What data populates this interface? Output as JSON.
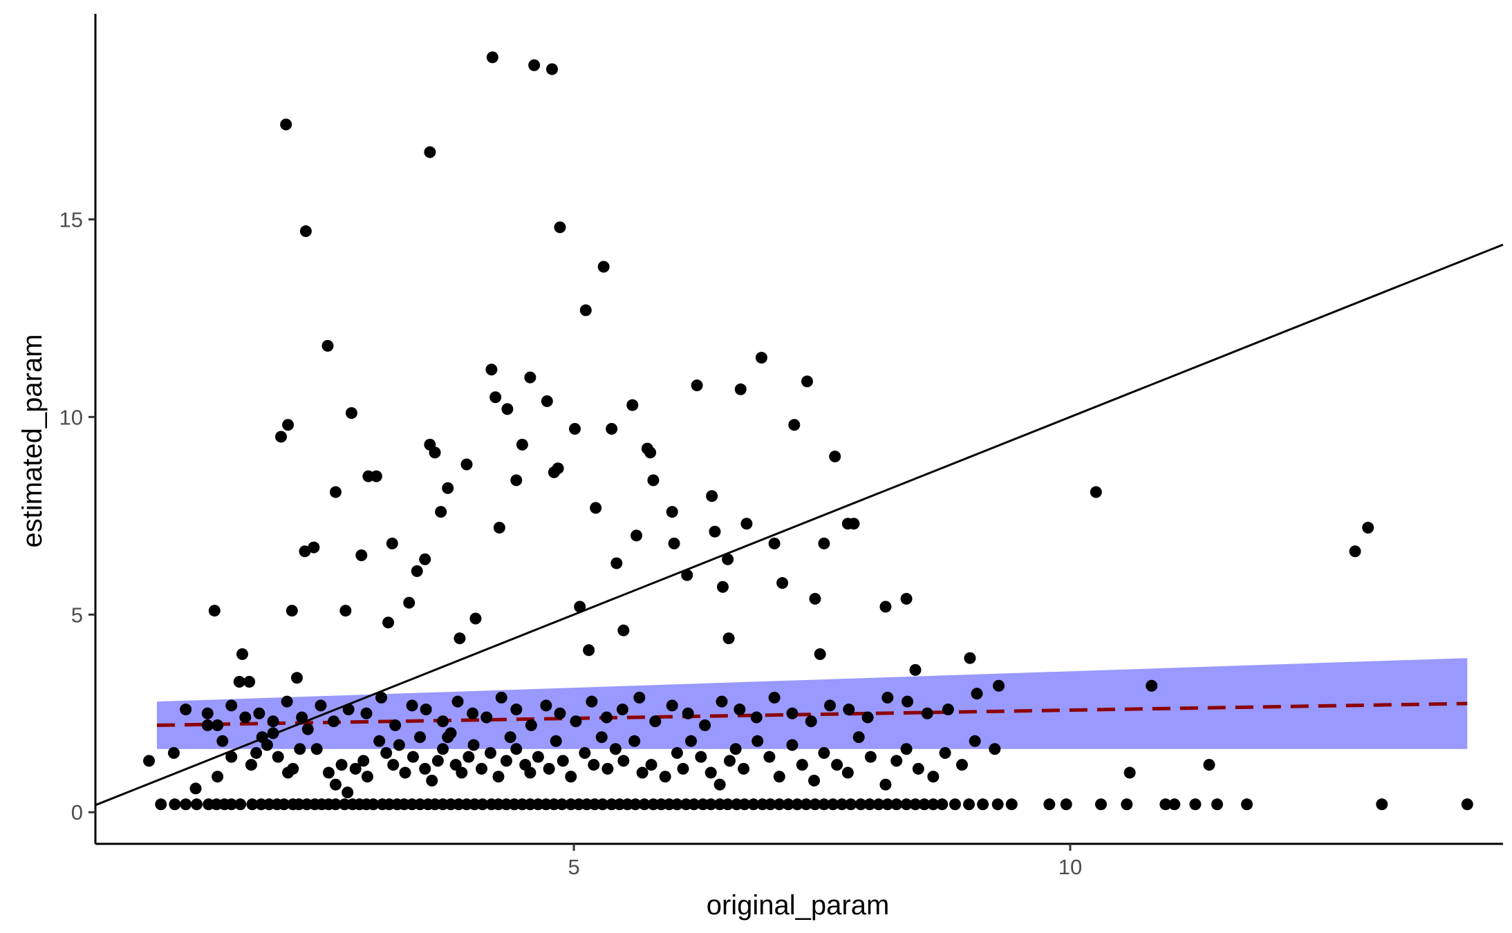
{
  "chart_data": {
    "type": "scatter",
    "title": "",
    "xlabel": "original_param",
    "ylabel": "estimated_param",
    "xlim": [
      0.18,
      14.36
    ],
    "ylim": [
      -0.8,
      20.2
    ],
    "x_ticks": [
      5,
      10
    ],
    "x_tick_labels": [
      "5",
      "10"
    ],
    "y_ticks": [
      0,
      5,
      10,
      15
    ],
    "y_tick_labels": [
      "0",
      "5",
      "10",
      "15"
    ],
    "grid": false,
    "legend": "none",
    "colors": {
      "points": "#000000",
      "identity_line": "#000000",
      "trend_line": "#8b0000",
      "confidence_band": "#9999ff"
    },
    "reference_line": {
      "type": "identity",
      "slope": 1,
      "intercept": 0
    },
    "trend": {
      "method": "linear",
      "x": [
        0.8,
        14.0
      ],
      "y": [
        2.2,
        2.75
      ],
      "ci_lower": [
        1.6,
        1.6
      ],
      "ci_upper": [
        2.8,
        3.9
      ]
    },
    "series": [
      {
        "x": [
          0.84,
          0.98,
          1.09,
          1.2,
          1.32,
          1.4,
          1.48,
          1.55,
          1.64,
          1.76,
          1.85,
          1.93,
          2.01,
          2.08,
          2.17,
          2.23,
          2.31,
          2.39,
          2.46,
          2.53,
          2.6,
          2.69,
          2.77,
          2.84,
          2.91,
          2.98,
          3.07,
          3.14,
          3.22,
          3.29,
          3.37,
          3.45,
          3.53,
          3.6,
          3.68,
          3.76,
          3.84,
          3.92,
          4.0,
          4.08,
          4.17,
          4.24,
          4.32,
          4.4,
          4.48,
          4.56,
          4.64,
          4.72,
          4.8,
          4.88,
          4.97,
          5.05,
          5.13,
          5.21,
          5.29,
          5.38,
          5.46,
          5.54,
          5.62,
          5.71,
          5.8,
          5.88,
          5.96,
          6.04,
          6.13,
          6.21,
          6.3,
          6.38,
          6.47,
          6.55,
          6.64,
          6.72,
          6.81,
          6.9,
          6.98,
          7.07,
          7.16,
          7.25,
          7.34,
          7.43,
          7.52,
          7.61,
          7.7,
          7.79,
          7.89,
          7.98,
          8.07,
          8.16,
          8.25,
          8.35,
          8.44,
          8.53,
          8.62,
          8.71,
          8.84,
          8.98,
          9.12,
          9.27,
          9.41,
          9.79,
          9.96,
          10.31,
          10.57,
          10.96,
          11.05,
          11.26,
          11.48,
          11.78,
          13.14,
          14.0
        ],
        "y": [
          0.2,
          0.2,
          0.2,
          0.2,
          0.2,
          0.2,
          0.2,
          0.2,
          0.2,
          0.2,
          0.2,
          0.2,
          0.2,
          0.2,
          0.2,
          0.2,
          0.2,
          0.2,
          0.2,
          0.2,
          0.2,
          0.2,
          0.2,
          0.2,
          0.2,
          0.2,
          0.2,
          0.2,
          0.2,
          0.2,
          0.2,
          0.2,
          0.2,
          0.2,
          0.2,
          0.2,
          0.2,
          0.2,
          0.2,
          0.2,
          0.2,
          0.2,
          0.2,
          0.2,
          0.2,
          0.2,
          0.2,
          0.2,
          0.2,
          0.2,
          0.2,
          0.2,
          0.2,
          0.2,
          0.2,
          0.2,
          0.2,
          0.2,
          0.2,
          0.2,
          0.2,
          0.2,
          0.2,
          0.2,
          0.2,
          0.2,
          0.2,
          0.2,
          0.2,
          0.2,
          0.2,
          0.2,
          0.2,
          0.2,
          0.2,
          0.2,
          0.2,
          0.2,
          0.2,
          0.2,
          0.2,
          0.2,
          0.2,
          0.2,
          0.2,
          0.2,
          0.2,
          0.2,
          0.2,
          0.2,
          0.2,
          0.2,
          0.2,
          0.2,
          0.2,
          0.2,
          0.2,
          0.2,
          0.2,
          0.2,
          0.2,
          0.2,
          0.2,
          0.2,
          0.2,
          0.2,
          0.2,
          0.2,
          0.2,
          0.2
        ]
      },
      {
        "x": [
          0.72,
          0.97,
          1.19,
          1.31,
          1.41,
          1.46,
          1.55,
          1.63,
          1.75,
          1.8,
          1.86,
          1.91,
          1.97,
          2.02,
          2.12,
          2.17,
          2.24,
          2.32,
          2.41,
          2.53,
          2.6,
          2.66,
          2.72,
          2.8,
          2.88,
          2.92,
          3.04,
          3.11,
          3.18,
          3.24,
          3.3,
          3.38,
          3.45,
          3.5,
          3.57,
          3.63,
          3.68,
          3.73,
          3.76,
          3.81,
          3.87,
          3.94,
          3.99,
          4.07,
          4.16,
          4.24,
          4.32,
          4.36,
          4.42,
          4.51,
          4.56,
          4.64,
          4.75,
          4.82,
          4.89,
          4.97,
          5.11,
          5.2,
          5.28,
          5.34,
          5.42,
          5.5,
          5.61,
          5.69,
          5.78,
          5.92,
          6.04,
          6.1,
          6.18,
          6.28,
          6.38,
          6.47,
          6.57,
          6.63,
          6.71,
          6.85,
          6.97,
          7.07,
          7.2,
          7.3,
          7.42,
          7.52,
          7.65,
          7.76,
          7.87,
          7.99,
          8.14,
          8.25,
          8.35,
          8.47,
          8.62,
          8.74,
          8.91,
          9.04,
          9.24,
          10.6,
          11.4
        ],
        "y": [
          1.3,
          1.5,
          0.6,
          2.2,
          0.9,
          1.8,
          1.4,
          3.3,
          1.2,
          1.5,
          1.9,
          1.7,
          2.0,
          1.4,
          1.0,
          1.1,
          1.6,
          2.1,
          1.6,
          1.0,
          0.7,
          1.2,
          0.5,
          1.1,
          1.3,
          0.9,
          1.8,
          1.5,
          1.2,
          1.7,
          1.0,
          1.4,
          1.9,
          1.1,
          0.8,
          1.3,
          1.6,
          1.9,
          2.0,
          1.2,
          1.0,
          1.4,
          1.7,
          1.1,
          1.5,
          0.9,
          1.3,
          1.9,
          1.6,
          1.2,
          1.0,
          1.4,
          1.1,
          1.8,
          1.3,
          0.9,
          1.5,
          1.2,
          1.9,
          1.1,
          1.6,
          1.3,
          1.8,
          1.0,
          1.2,
          0.9,
          1.5,
          1.1,
          1.8,
          1.4,
          1.0,
          0.7,
          1.3,
          1.6,
          1.1,
          1.8,
          1.4,
          0.9,
          1.7,
          1.2,
          0.8,
          1.5,
          1.2,
          1.0,
          1.9,
          1.4,
          0.7,
          1.3,
          1.6,
          1.1,
          0.9,
          1.5,
          1.2,
          1.8,
          1.6,
          1.0,
          1.2
        ]
      },
      {
        "x": [
          1.09,
          1.31,
          1.41,
          1.55,
          1.69,
          1.83,
          1.97,
          2.11,
          2.26,
          2.45,
          2.58,
          2.73,
          2.91,
          3.06,
          3.2,
          3.37,
          3.51,
          3.68,
          3.83,
          3.98,
          4.12,
          4.27,
          4.42,
          4.57,
          4.72,
          4.86,
          5.02,
          5.18,
          5.33,
          5.49,
          5.66,
          5.82,
          5.99,
          6.15,
          6.32,
          6.49,
          6.67,
          6.84,
          7.02,
          7.2,
          7.39,
          7.58,
          7.77,
          7.96,
          8.16,
          8.36,
          8.56,
          8.77,
          9.06,
          9.28,
          10.82
        ],
        "y": [
          2.6,
          2.5,
          2.2,
          2.7,
          2.4,
          2.5,
          2.3,
          2.8,
          2.4,
          2.7,
          2.3,
          2.6,
          2.5,
          2.9,
          2.2,
          2.7,
          2.6,
          2.3,
          2.8,
          2.5,
          2.4,
          2.9,
          2.6,
          2.2,
          2.7,
          2.5,
          2.3,
          2.8,
          2.4,
          2.6,
          2.9,
          2.3,
          2.7,
          2.5,
          2.2,
          2.8,
          2.6,
          2.4,
          2.9,
          2.5,
          2.3,
          2.7,
          2.6,
          2.4,
          2.9,
          2.8,
          2.5,
          2.6,
          3.0,
          3.2,
          3.2
        ]
      },
      {
        "x": [
          1.38,
          1.66,
          1.73,
          2.05,
          2.12,
          2.16,
          2.21,
          2.29,
          2.38,
          2.52,
          2.6,
          2.7,
          2.76,
          2.86,
          2.93,
          3.01,
          3.13,
          3.17,
          3.34,
          3.42,
          3.5,
          3.55,
          3.6,
          3.66,
          3.73,
          3.85,
          3.92,
          4.01,
          4.17,
          4.21,
          4.25,
          4.33,
          4.42,
          4.48,
          4.56,
          4.73,
          4.8,
          4.84,
          5.01,
          5.06,
          5.12,
          5.15,
          5.22,
          5.38,
          5.5,
          5.59,
          5.74,
          5.77,
          5.8,
          5.99,
          6.01,
          6.14,
          6.24,
          6.39,
          6.42,
          6.5,
          6.56,
          6.68,
          6.74,
          6.89,
          7.02,
          7.1,
          7.22,
          7.35,
          7.43,
          7.48,
          7.63,
          7.76,
          7.82,
          8.14,
          8.35,
          8.44,
          8.99,
          10.26,
          12.87,
          13.0
        ],
        "y": [
          5.1,
          4.0,
          3.3,
          9.5,
          9.8,
          5.1,
          3.4,
          6.6,
          6.7,
          11.8,
          8.1,
          5.1,
          10.1,
          6.5,
          8.5,
          8.5,
          4.8,
          6.8,
          5.3,
          6.1,
          6.4,
          9.3,
          9.1,
          7.6,
          8.2,
          4.4,
          8.8,
          4.9,
          11.2,
          10.5,
          7.2,
          10.2,
          8.4,
          9.3,
          11.0,
          10.4,
          8.6,
          8.7,
          9.7,
          5.2,
          12.7,
          4.1,
          7.7,
          9.7,
          4.6,
          10.3,
          9.2,
          9.1,
          8.4,
          7.6,
          6.8,
          6.0,
          10.8,
          8.0,
          7.1,
          5.7,
          4.4,
          10.7,
          7.3,
          11.5,
          6.8,
          5.8,
          9.8,
          10.9,
          5.4,
          4.0,
          9.0,
          7.3,
          7.3,
          5.2,
          5.4,
          3.6,
          3.9,
          8.1,
          6.6,
          7.2
        ]
      },
      {
        "x": [
          2.1,
          2.3,
          3.55,
          4.18,
          4.6,
          4.78,
          4.86,
          5.3,
          5.43,
          5.63,
          6.55,
          7.52
        ],
        "y": [
          17.4,
          14.7,
          16.7,
          19.1,
          18.9,
          18.8,
          14.8,
          13.8,
          6.3,
          7.0,
          6.4,
          6.8
        ]
      }
    ]
  }
}
